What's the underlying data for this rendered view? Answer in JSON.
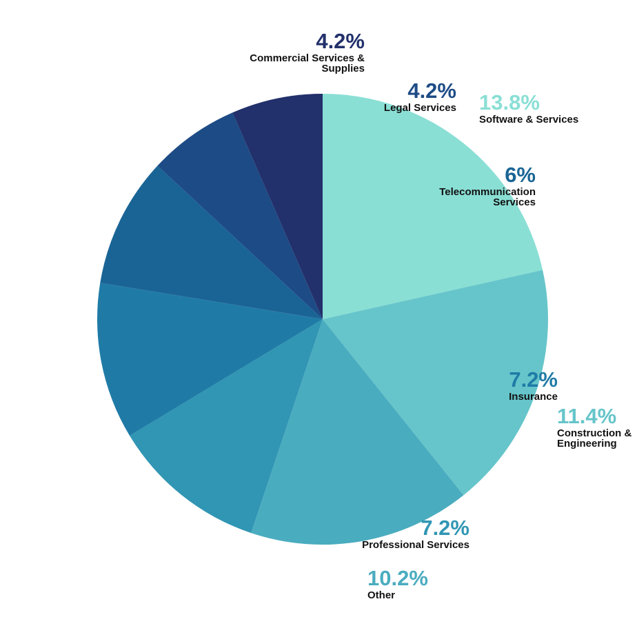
{
  "chart_data": {
    "type": "pie",
    "categories": [
      "Software & Services",
      "Construction & Engineering",
      "Other",
      "Professional Services",
      "Insurance",
      "Telecommunication Services",
      "Legal Services",
      "Commercial Services & Supplies"
    ],
    "values": [
      13.8,
      11.4,
      10.2,
      7.2,
      7.2,
      6,
      4.2,
      4.2
    ],
    "value_labels": [
      "13.8%",
      "11.4%",
      "10.2%",
      "7.2%",
      "7.2%",
      "6%",
      "4.2%",
      "4.2%"
    ],
    "colors": [
      "#8adfd5",
      "#66c5ca",
      "#4aacbf",
      "#3196b3",
      "#1f7ba6",
      "#1a6495",
      "#1d4b85",
      "#22306b"
    ]
  }
}
